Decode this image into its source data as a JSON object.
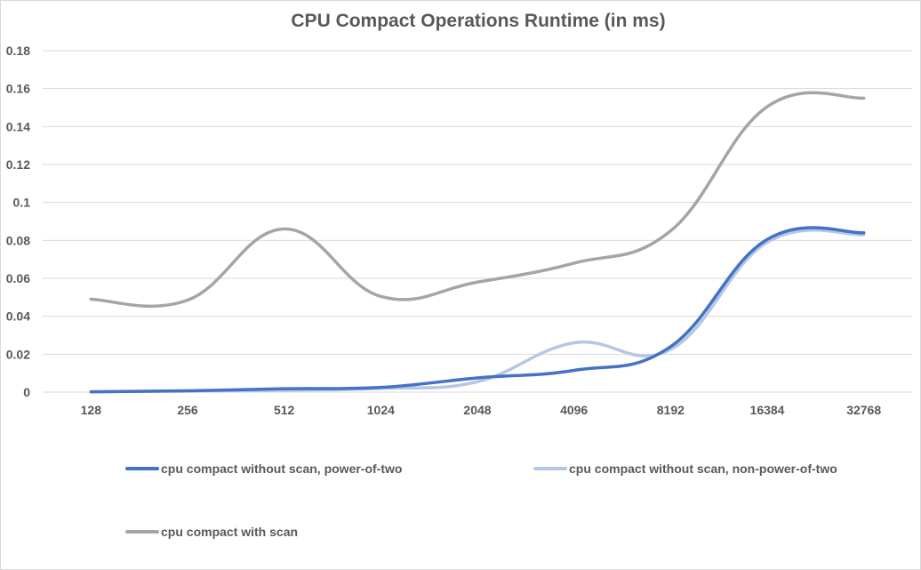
{
  "chart_data": {
    "type": "line",
    "title": "CPU Compact Operations Runtime (in ms)",
    "xlabel": "",
    "ylabel": "",
    "categories": [
      "128",
      "256",
      "512",
      "1024",
      "2048",
      "4096",
      "8192",
      "16384",
      "32768"
    ],
    "ylim": [
      0,
      0.18
    ],
    "yticks": [
      0,
      0.02,
      0.04,
      0.06,
      0.08,
      0.1,
      0.12,
      0.14,
      0.16,
      0.18
    ],
    "ytick_labels": [
      "0",
      "0.02",
      "0.04",
      "0.06",
      "0.08",
      "0.1",
      "0.12",
      "0.14",
      "0.16",
      "0.18"
    ],
    "grid": true,
    "legend_position": "bottom",
    "smooth": true,
    "series": [
      {
        "name": "cpu compact without scan, power-of-two",
        "color": "#4472c4",
        "values": [
          0.0002,
          0.0007,
          0.0018,
          0.0025,
          0.0075,
          0.0115,
          0.024,
          0.0805,
          0.084
        ]
      },
      {
        "name": "cpu compact without scan, non-power-of-two",
        "color": "#b4c7e7",
        "values": [
          0.0002,
          0.0005,
          0.001,
          0.002,
          0.0055,
          0.026,
          0.0225,
          0.079,
          0.083
        ]
      },
      {
        "name": "cpu compact with scan",
        "color": "#a5a5a5",
        "values": [
          0.049,
          0.0485,
          0.086,
          0.0505,
          0.058,
          0.068,
          0.085,
          0.1505,
          0.155
        ]
      }
    ]
  }
}
